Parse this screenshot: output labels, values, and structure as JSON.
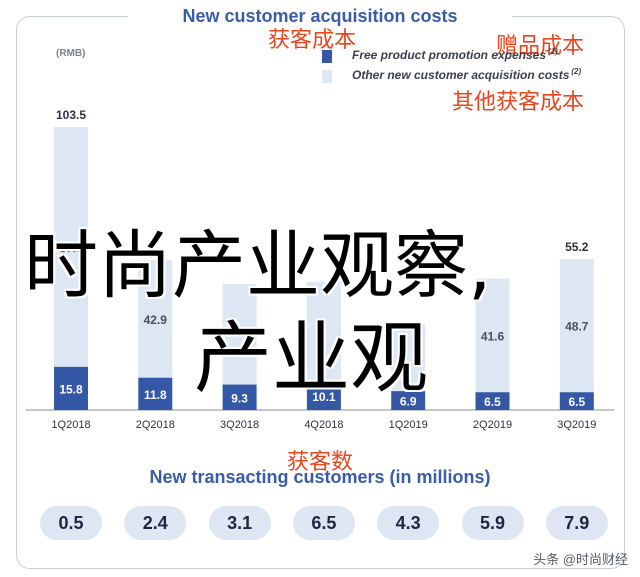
{
  "chart_data": {
    "type": "bar",
    "stacked": true,
    "title": "New customer acquisition costs",
    "unit": "(RMB)",
    "categories": [
      "1Q2018",
      "2Q2018",
      "3Q2018",
      "4Q2018",
      "1Q2019",
      "2Q2019",
      "3Q2019"
    ],
    "series": [
      {
        "name": "Free product promotion expenses",
        "footnote": "(1)",
        "color": "#3457a6",
        "values": [
          15.8,
          11.8,
          9.3,
          10.1,
          6.9,
          6.5,
          6.5
        ],
        "labels": [
          "15.8",
          "11.8",
          "9.3",
          "10.1",
          "6.9",
          "6.5",
          "6.5"
        ]
      },
      {
        "name": "Other new customer acquisition costs",
        "footnote": "(2)",
        "color": "#dde6f3",
        "values": [
          87.7,
          42.9,
          36.8,
          36.8,
          24.3,
          41.6,
          48.7
        ],
        "labels": [
          "87.7",
          "42.9",
          "",
          "",
          "",
          "41.6",
          "48.7"
        ]
      }
    ],
    "totals": [
      "103.5",
      "",
      "",
      "",
      "",
      "",
      "55.2"
    ],
    "ylim": [
      0,
      110
    ],
    "grid": false,
    "legend": "top-right"
  },
  "annotations": {
    "cn_acquisition_cost": "获客成本",
    "cn_gift_cost": "赠品成本",
    "cn_other_cost": "其他获客成本",
    "cn_customer_count": "获客数"
  },
  "transacting": {
    "title": "New transacting customers (in millions)",
    "values": [
      "0.5",
      "2.4",
      "3.1",
      "6.5",
      "4.3",
      "5.9",
      "7.9"
    ]
  },
  "overlay": {
    "line1": "时尚产业观察,",
    "line2": "产业观"
  },
  "source_credit": "头条 @时尚财经"
}
